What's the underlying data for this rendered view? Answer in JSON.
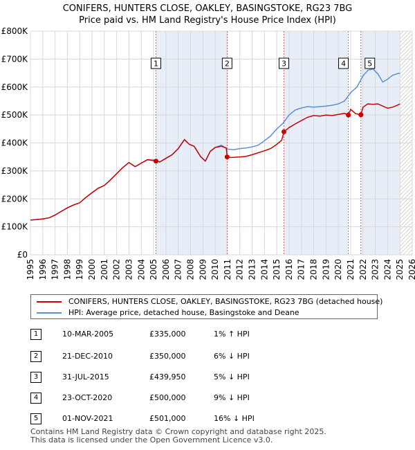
{
  "title": {
    "line1": "CONIFERS, HUNTERS CLOSE, OAKLEY, BASINGSTOKE, RG23 7BG",
    "line2": "Price paid vs. HM Land Registry's House Price Index (HPI)"
  },
  "legend": {
    "property": "CONIFERS, HUNTERS CLOSE, OAKLEY, BASINGSTOKE, RG23 7BG (detached house)",
    "hpi": "HPI: Average price, detached house, Basingstoke and Deane"
  },
  "colors": {
    "property": "#cc0000",
    "hpi": "#5b8fd4",
    "shade": "#e8eef8",
    "vline": "#d66",
    "grid": "#d8d8d8"
  },
  "transactions": [
    {
      "num": "1",
      "date": "10-MAR-2005",
      "price": "£335,000",
      "hpi": "1% ↑ HPI"
    },
    {
      "num": "2",
      "date": "21-DEC-2010",
      "price": "£350,000",
      "hpi": "6% ↓ HPI"
    },
    {
      "num": "3",
      "date": "31-JUL-2015",
      "price": "£439,950",
      "hpi": "5% ↓ HPI"
    },
    {
      "num": "4",
      "date": "23-OCT-2020",
      "price": "£500,000",
      "hpi": "9% ↓ HPI"
    },
    {
      "num": "5",
      "date": "01-NOV-2021",
      "price": "£501,000",
      "hpi": "16% ↓ HPI"
    }
  ],
  "footer": {
    "line1": "Contains HM Land Registry data © Crown copyright and database right 2025.",
    "line2": "This data is licensed under the Open Government Licence v3.0."
  },
  "chart_data": {
    "type": "line",
    "title": "CONIFERS, HUNTERS CLOSE, OAKLEY, BASINGSTOKE, RG23 7BG",
    "subtitle": "Price paid vs. HM Land Registry's House Price Index (HPI)",
    "xlabel": "",
    "ylabel": "",
    "xlim": [
      1995,
      2026
    ],
    "ylim": [
      0,
      800000
    ],
    "x_ticks": [
      1995,
      1996,
      1997,
      1998,
      1999,
      2000,
      2001,
      2002,
      2003,
      2004,
      2005,
      2006,
      2007,
      2008,
      2009,
      2010,
      2011,
      2012,
      2013,
      2014,
      2015,
      2016,
      2017,
      2018,
      2019,
      2020,
      2021,
      2022,
      2023,
      2024,
      2025,
      2026
    ],
    "y_ticks": [
      {
        "value": 0,
        "label": "£0"
      },
      {
        "value": 100000,
        "label": "£100K"
      },
      {
        "value": 200000,
        "label": "£200K"
      },
      {
        "value": 300000,
        "label": "£300K"
      },
      {
        "value": 400000,
        "label": "£400K"
      },
      {
        "value": 500000,
        "label": "£500K"
      },
      {
        "value": 600000,
        "label": "£600K"
      },
      {
        "value": 700000,
        "label": "£700K"
      },
      {
        "value": 800000,
        "label": "£800K"
      }
    ],
    "grid": true,
    "legend_position": "bottom",
    "shaded_periods": [
      [
        2005.19,
        2010.97
      ],
      [
        2015.58,
        2020.81
      ],
      [
        2021.83,
        2025.0
      ]
    ],
    "hatched_future_from": 2025.0,
    "sales": [
      {
        "label": "1",
        "x": 2005.19,
        "y": 335000
      },
      {
        "label": "2",
        "x": 2010.97,
        "y": 350000
      },
      {
        "label": "3",
        "x": 2015.58,
        "y": 439950
      },
      {
        "label": "4",
        "x": 2020.81,
        "y": 500000
      },
      {
        "label": "5",
        "x": 2021.83,
        "y": 501000
      }
    ],
    "series": [
      {
        "name": "CONIFERS, HUNTERS CLOSE, OAKLEY, BASINGSTOKE, RG23 7BG (detached house)",
        "x": [
          1995.0,
          1995.5,
          1996.0,
          1996.5,
          1997.0,
          1997.5,
          1998.0,
          1998.5,
          1999.0,
          1999.5,
          2000.0,
          2000.5,
          2001.0,
          2001.5,
          2002.0,
          2002.5,
          2003.0,
          2003.5,
          2004.0,
          2004.5,
          2005.0,
          2005.19,
          2005.5,
          2006.0,
          2006.5,
          2007.0,
          2007.5,
          2007.9,
          2008.3,
          2008.8,
          2009.2,
          2009.6,
          2010.0,
          2010.5,
          2010.9,
          2010.97,
          2011.3,
          2012.0,
          2012.5,
          2013.0,
          2013.5,
          2014.0,
          2014.5,
          2015.0,
          2015.4,
          2015.58,
          2016.0,
          2016.5,
          2017.0,
          2017.5,
          2018.0,
          2018.5,
          2019.0,
          2019.5,
          2020.0,
          2020.5,
          2020.81,
          2021.0,
          2021.4,
          2021.83,
          2022.0,
          2022.4,
          2022.8,
          2023.2,
          2023.6,
          2024.0,
          2024.4,
          2024.8,
          2025.0
        ],
        "y": [
          124000,
          126000,
          128000,
          132000,
          142000,
          155000,
          168000,
          178000,
          186000,
          205000,
          222000,
          238000,
          248000,
          268000,
          290000,
          312000,
          330000,
          315000,
          328000,
          340000,
          338000,
          335000,
          332000,
          345000,
          358000,
          380000,
          412000,
          395000,
          388000,
          352000,
          335000,
          370000,
          384000,
          388000,
          382000,
          350000,
          348000,
          350000,
          352000,
          358000,
          365000,
          372000,
          380000,
          395000,
          410000,
          439950,
          455000,
          468000,
          480000,
          492000,
          498000,
          496000,
          500000,
          498000,
          502000,
          506000,
          500000,
          520000,
          505000,
          501000,
          528000,
          540000,
          538000,
          540000,
          532000,
          524000,
          528000,
          535000,
          540000
        ]
      },
      {
        "name": "HPI: Average price, detached house, Basingstoke and Deane",
        "x": [
          1995.0,
          1995.5,
          1996.0,
          1996.5,
          1997.0,
          1997.5,
          1998.0,
          1998.5,
          1999.0,
          1999.5,
          2000.0,
          2000.5,
          2001.0,
          2001.5,
          2002.0,
          2002.5,
          2003.0,
          2003.5,
          2004.0,
          2004.5,
          2005.0,
          2005.5,
          2006.0,
          2006.5,
          2007.0,
          2007.5,
          2007.9,
          2008.3,
          2008.8,
          2009.2,
          2009.6,
          2010.0,
          2010.5,
          2011.0,
          2011.5,
          2012.0,
          2012.5,
          2013.0,
          2013.5,
          2014.0,
          2014.5,
          2015.0,
          2015.5,
          2016.0,
          2016.5,
          2017.0,
          2017.5,
          2018.0,
          2018.5,
          2019.0,
          2019.5,
          2020.0,
          2020.5,
          2021.0,
          2021.5,
          2022.0,
          2022.4,
          2022.8,
          2023.2,
          2023.6,
          2024.0,
          2024.4,
          2024.8,
          2025.0
        ],
        "y": [
          124000,
          126000,
          128000,
          132000,
          142000,
          155000,
          168000,
          178000,
          186000,
          205000,
          222000,
          238000,
          248000,
          268000,
          290000,
          312000,
          330000,
          315000,
          328000,
          340000,
          336000,
          332000,
          345000,
          358000,
          380000,
          412000,
          395000,
          388000,
          352000,
          335000,
          370000,
          384000,
          392000,
          378000,
          376000,
          380000,
          382000,
          386000,
          392000,
          408000,
          425000,
          450000,
          470000,
          500000,
          518000,
          525000,
          530000,
          528000,
          530000,
          532000,
          535000,
          540000,
          550000,
          580000,
          600000,
          640000,
          660000,
          665000,
          648000,
          618000,
          628000,
          642000,
          648000,
          650000
        ]
      }
    ]
  }
}
